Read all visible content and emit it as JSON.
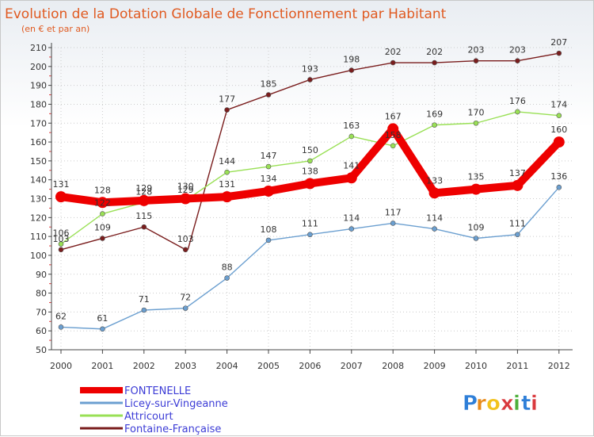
{
  "chart_data": {
    "type": "line",
    "title": "Evolution de la Dotation Globale de Fonctionnement par Habitant",
    "subtitle": "(en € et par an)",
    "categories": [
      "2000",
      "2001",
      "2002",
      "2003",
      "2004",
      "2005",
      "2006",
      "2007",
      "2008",
      "2009",
      "2010",
      "2011",
      "2012"
    ],
    "yticks": [
      "50",
      "60",
      "70",
      "80",
      "90",
      "100",
      "110",
      "120",
      "130",
      "140",
      "150",
      "160",
      "170",
      "180",
      "190",
      "200",
      "210"
    ],
    "ylim": [
      50,
      210
    ],
    "grid": true,
    "legend_position": "bottom-left",
    "series": [
      {
        "key": "fontaine",
        "name": "Fontaine-Française",
        "color": "#7a1d1d",
        "values": [
          103,
          109,
          115,
          103,
          177,
          185,
          193,
          198,
          202,
          202,
          203,
          203,
          207
        ],
        "labels": [
          "103",
          "109",
          "115",
          "103",
          "177",
          "185",
          "193",
          "198",
          "202",
          "202",
          "203",
          "203",
          "207"
        ]
      },
      {
        "key": "licey",
        "name": "Licey-sur-Vingeanne",
        "color": "#6b9fd0",
        "values": [
          62,
          61,
          71,
          72,
          88,
          108,
          111,
          114,
          117,
          114,
          109,
          111,
          136
        ],
        "labels": [
          "62",
          "61",
          "71",
          "72",
          "88",
          "108",
          "111",
          "114",
          "117",
          "114",
          "109",
          "111",
          "136"
        ]
      },
      {
        "key": "attricourt",
        "name": "Attricourt",
        "color": "#99e055",
        "values": [
          106,
          122,
          128,
          129,
          144,
          147,
          150,
          163,
          158,
          169,
          170,
          176,
          174
        ],
        "labels": [
          "106",
          "122",
          "128",
          "129",
          "144",
          "147",
          "150",
          "163",
          "158",
          "169",
          "170",
          "176",
          "174"
        ]
      },
      {
        "key": "fontenelle",
        "name": "FONTENELLE",
        "color": "#ee0000",
        "values": [
          131,
          128,
          129,
          130,
          131,
          134,
          138,
          141,
          167,
          133,
          135,
          137,
          160
        ],
        "labels": [
          "131",
          "128",
          "129",
          "130",
          "131",
          "134",
          "138",
          "141",
          "167",
          "133",
          "135",
          "137",
          "160"
        ]
      }
    ]
  },
  "legend": [
    {
      "name": "FONTENELLE",
      "color": "#ee0000"
    },
    {
      "name": "Licey-sur-Vingeanne",
      "color": "#6b9fd0"
    },
    {
      "name": "Attricourt",
      "color": "#99e055"
    },
    {
      "name": "Fontaine-Française",
      "color": "#7a1d1d"
    }
  ],
  "logo": {
    "text": "Proxiti",
    "letter_colors": [
      "#2f7fd8",
      "#e88a1a",
      "#f2c21c",
      "#d9393e",
      "#4caf3a",
      "#2f7fd8",
      "#d9393e"
    ]
  }
}
